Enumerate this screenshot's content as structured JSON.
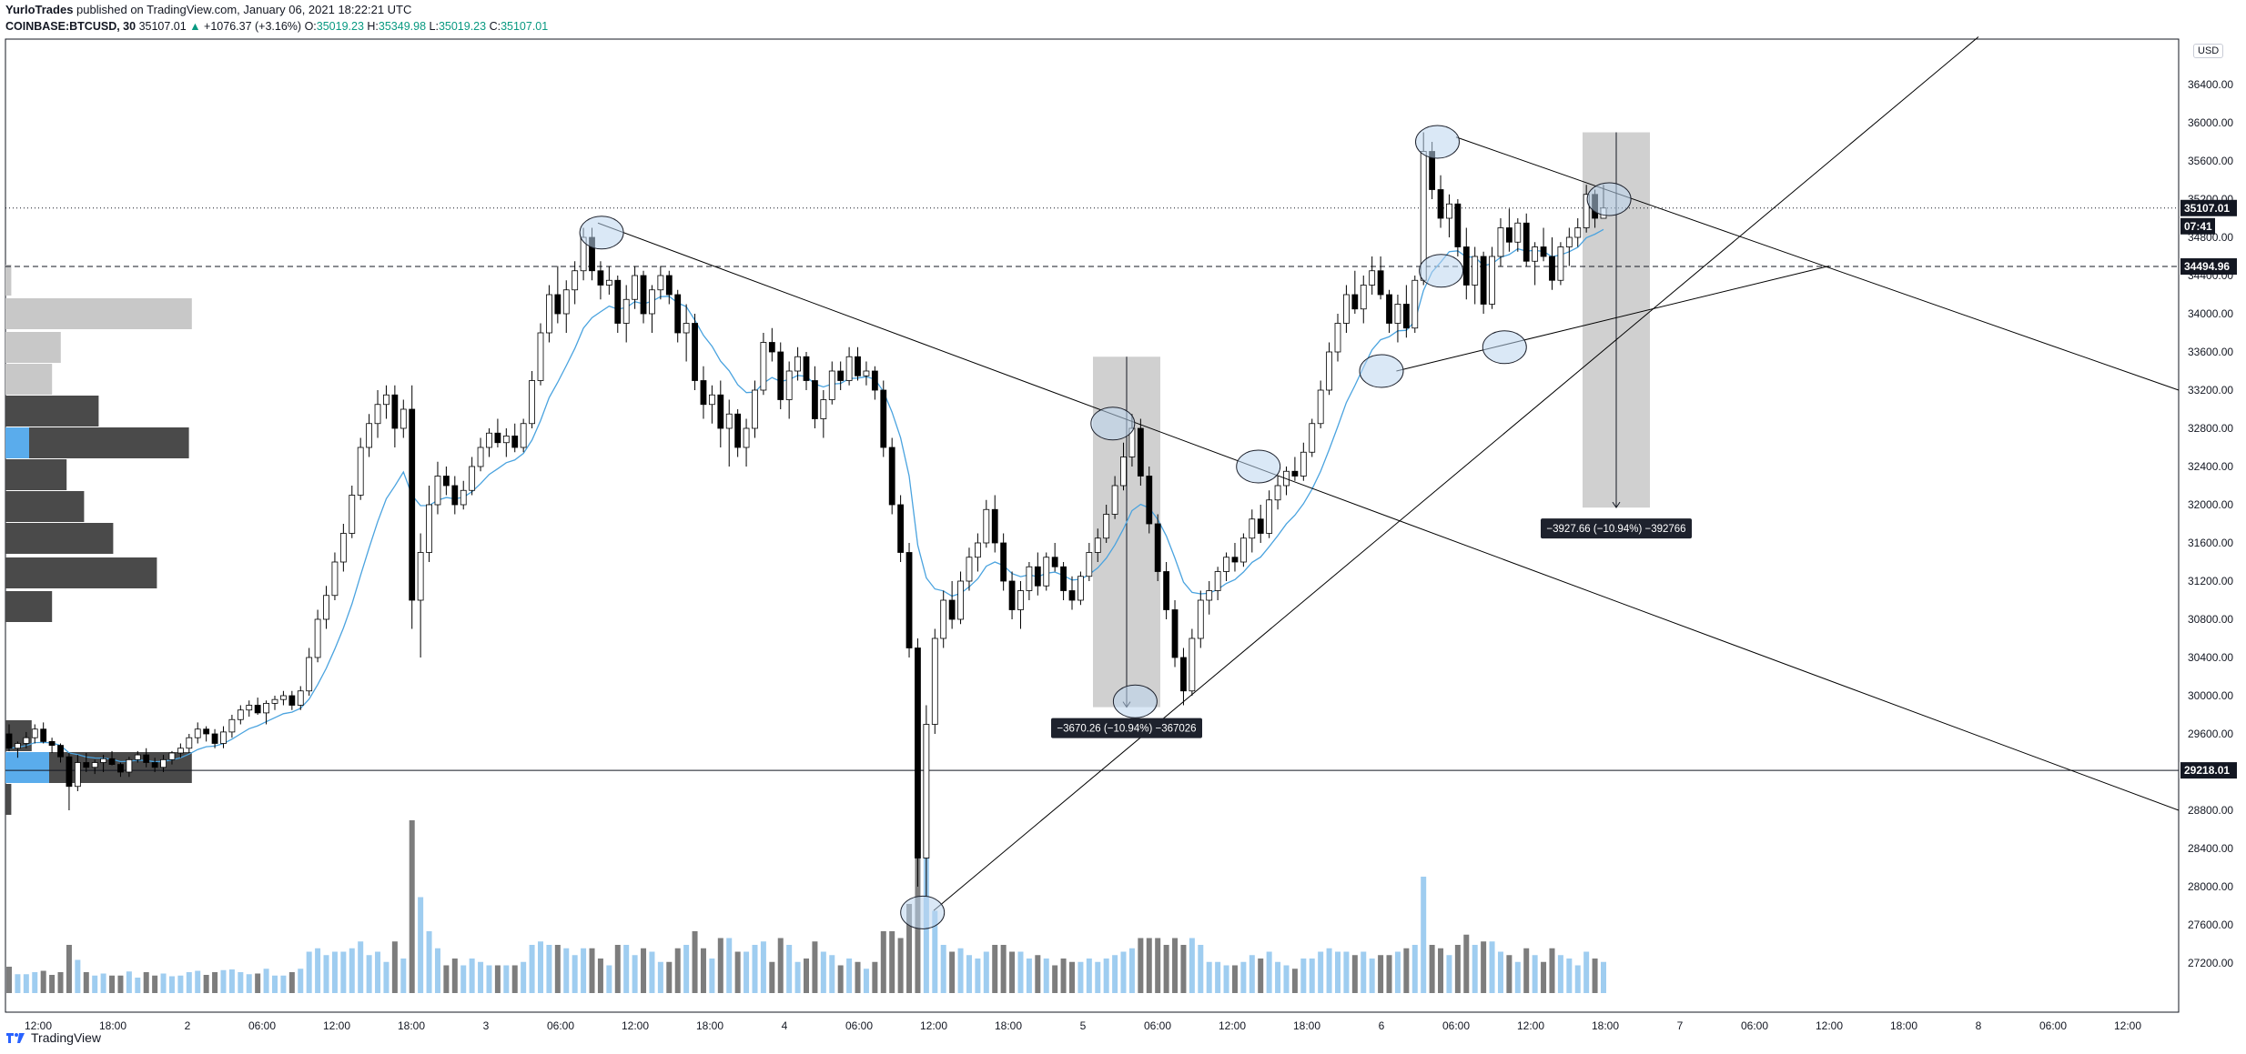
{
  "header": {
    "author": "YurloTrades",
    "published": "published on TradingView.com, January 06, 2021 18:22:21 UTC",
    "symbol": "COINBASE:BTCUSD, 30",
    "last": "35107.01",
    "change": "+1076.37 (+3.16%)",
    "open_label": "O:",
    "open": "35019.23",
    "high_label": "H:",
    "high": "35349.98",
    "low_label": "L:",
    "low": "35019.23",
    "close_label": "C:",
    "close": "35107.01"
  },
  "footer": {
    "brand": "TradingView"
  },
  "currency": "USD",
  "colors": {
    "up_candle": "#ffffff",
    "down_candle": "#000000",
    "ema": "#4aa3df",
    "volume_up": "#9fcdf0",
    "volume_down": "#7d7d7d",
    "vp_dark": "#4a4a4a",
    "vp_light": "#c8c8c8",
    "vp_poc": "#5aacec",
    "measure_box": "#c8c8c8",
    "trendline": "#000000"
  },
  "chart_data": {
    "type": "candlestick",
    "symbol": "COINBASE:BTCUSD",
    "interval": "30",
    "xaxis_ticks": [
      "12:00",
      "18:00",
      "2",
      "06:00",
      "12:00",
      "18:00",
      "3",
      "06:00",
      "12:00",
      "18:00",
      "4",
      "06:00",
      "12:00",
      "18:00",
      "5",
      "06:00",
      "12:00",
      "18:00",
      "6",
      "06:00",
      "12:00",
      "18:00",
      "7",
      "06:00",
      "12:00",
      "18:00",
      "8",
      "06:00",
      "12:00"
    ],
    "yaxis_ticks": [
      36400,
      36000,
      35600,
      35200,
      34800,
      34400,
      34000,
      33600,
      33200,
      32800,
      32400,
      32000,
      31600,
      31200,
      30800,
      30400,
      30000,
      29600,
      29200,
      28800,
      28400,
      28000,
      27600,
      27200
    ],
    "ylim": [
      26900,
      36800
    ],
    "price_labels": [
      {
        "value": "35107.01",
        "kind": "last"
      },
      {
        "value": "07:41",
        "kind": "countdown"
      },
      {
        "value": "34494.96",
        "kind": "level"
      },
      {
        "value": "29218.01",
        "kind": "level"
      }
    ],
    "horizontal_lines": [
      {
        "price": 35107.01,
        "style": "dotted"
      },
      {
        "price": 34494.96,
        "style": "dashed"
      },
      {
        "price": 29218.01,
        "style": "solid"
      }
    ],
    "measurements": [
      {
        "text": "−3670.26 (−10.94%) −367026",
        "top": 33550,
        "bottom": 29880
      },
      {
        "text": "−3927.66 (−10.94%) −392766",
        "top": 35900,
        "bottom": 31970
      }
    ],
    "trendlines": [
      {
        "from": [
          7.5,
          34950
        ],
        "to": [
          29.0,
          28800
        ]
      },
      {
        "from": [
          12.0,
          27750
        ],
        "to": [
          26.0,
          36900
        ]
      },
      {
        "from": [
          19.0,
          35850
        ],
        "to": [
          29.0,
          33200
        ]
      },
      {
        "from": [
          18.2,
          33400
        ],
        "to": [
          24.0,
          34500
        ]
      }
    ],
    "circles": [
      [
        7.55,
        34850
      ],
      [
        14.4,
        32850
      ],
      [
        16.35,
        32400
      ],
      [
        14.7,
        29940
      ],
      [
        11.85,
        27730
      ],
      [
        18.0,
        33400
      ],
      [
        18.8,
        34450
      ],
      [
        19.65,
        33650
      ],
      [
        18.75,
        35800
      ],
      [
        21.05,
        35200
      ]
    ],
    "candles": [
      [
        29600,
        29700,
        29420,
        29450
      ],
      [
        29450,
        29520,
        29350,
        29500
      ],
      [
        29500,
        29620,
        29450,
        29560
      ],
      [
        29560,
        29700,
        29500,
        29650
      ],
      [
        29650,
        29720,
        29500,
        29520
      ],
      [
        29520,
        29560,
        29400,
        29480
      ],
      [
        29480,
        29500,
        29300,
        29360
      ],
      [
        29360,
        29400,
        28800,
        29050
      ],
      [
        29050,
        29380,
        29000,
        29300
      ],
      [
        29300,
        29400,
        29200,
        29250
      ],
      [
        29250,
        29330,
        29180,
        29300
      ],
      [
        29300,
        29380,
        29200,
        29340
      ],
      [
        29340,
        29420,
        29270,
        29280
      ],
      [
        29280,
        29300,
        29150,
        29200
      ],
      [
        29200,
        29360,
        29150,
        29330
      ],
      [
        29330,
        29420,
        29300,
        29380
      ],
      [
        29380,
        29450,
        29250,
        29300
      ],
      [
        29300,
        29350,
        29200,
        29250
      ],
      [
        29250,
        29380,
        29200,
        29330
      ],
      [
        29330,
        29420,
        29280,
        29400
      ],
      [
        29400,
        29500,
        29350,
        29450
      ],
      [
        29450,
        29600,
        29400,
        29560
      ],
      [
        29560,
        29720,
        29500,
        29650
      ],
      [
        29650,
        29680,
        29520,
        29600
      ],
      [
        29600,
        29650,
        29450,
        29500
      ],
      [
        29500,
        29680,
        29450,
        29620
      ],
      [
        29620,
        29800,
        29560,
        29750
      ],
      [
        29750,
        29900,
        29700,
        29850
      ],
      [
        29850,
        29950,
        29780,
        29900
      ],
      [
        29900,
        29980,
        29800,
        29820
      ],
      [
        29820,
        29950,
        29700,
        29920
      ],
      [
        29920,
        30000,
        29850,
        29960
      ],
      [
        29960,
        30050,
        29900,
        30000
      ],
      [
        30000,
        30050,
        29850,
        29900
      ],
      [
        29900,
        30100,
        29850,
        30050
      ],
      [
        30050,
        30500,
        30000,
        30400
      ],
      [
        30400,
        30900,
        30350,
        30800
      ],
      [
        30800,
        31150,
        30700,
        31050
      ],
      [
        31050,
        31500,
        31000,
        31400
      ],
      [
        31400,
        31800,
        31300,
        31700
      ],
      [
        31700,
        32200,
        31650,
        32100
      ],
      [
        32100,
        32700,
        32050,
        32600
      ],
      [
        32600,
        32950,
        32500,
        32850
      ],
      [
        32850,
        33200,
        32700,
        33050
      ],
      [
        33050,
        33250,
        32900,
        33150
      ],
      [
        33150,
        33250,
        32600,
        32800
      ],
      [
        32800,
        33100,
        32700,
        33000
      ],
      [
        33000,
        33250,
        30700,
        31000
      ],
      [
        31000,
        31700,
        30400,
        31500
      ],
      [
        31500,
        32200,
        31400,
        32000
      ],
      [
        32000,
        32450,
        31900,
        32300
      ],
      [
        32300,
        32400,
        32100,
        32200
      ],
      [
        32200,
        32300,
        31900,
        32000
      ],
      [
        32000,
        32250,
        31950,
        32150
      ],
      [
        32150,
        32500,
        32100,
        32400
      ],
      [
        32400,
        32700,
        32350,
        32600
      ],
      [
        32600,
        32800,
        32500,
        32750
      ],
      [
        32750,
        32900,
        32600,
        32650
      ],
      [
        32650,
        32800,
        32500,
        32720
      ],
      [
        32720,
        32850,
        32550,
        32600
      ],
      [
        32600,
        32900,
        32550,
        32850
      ],
      [
        32850,
        33400,
        32800,
        33300
      ],
      [
        33300,
        33900,
        33250,
        33800
      ],
      [
        33800,
        34300,
        33700,
        34200
      ],
      [
        34200,
        34500,
        33900,
        34000
      ],
      [
        34000,
        34350,
        33800,
        34250
      ],
      [
        34250,
        34550,
        34100,
        34450
      ],
      [
        34450,
        34900,
        34350,
        34800
      ],
      [
        34800,
        34900,
        34350,
        34450
      ],
      [
        34450,
        34550,
        34150,
        34300
      ],
      [
        34300,
        34500,
        34200,
        34350
      ],
      [
        34350,
        34400,
        33800,
        33900
      ],
      [
        33900,
        34300,
        33700,
        34150
      ],
      [
        34150,
        34500,
        34050,
        34400
      ],
      [
        34400,
        34450,
        33900,
        34000
      ],
      [
        34000,
        34300,
        33800,
        34250
      ],
      [
        34250,
        34500,
        34150,
        34400
      ],
      [
        34400,
        34450,
        34100,
        34200
      ],
      [
        34200,
        34250,
        33700,
        33800
      ],
      [
        33800,
        34100,
        33500,
        33900
      ],
      [
        33900,
        34000,
        33200,
        33300
      ],
      [
        33300,
        33450,
        32900,
        33050
      ],
      [
        33050,
        33250,
        32850,
        33150
      ],
      [
        33150,
        33300,
        32600,
        32800
      ],
      [
        32800,
        33100,
        32400,
        32950
      ],
      [
        32950,
        33000,
        32500,
        32600
      ],
      [
        32600,
        32900,
        32400,
        32800
      ],
      [
        32800,
        33300,
        32700,
        33200
      ],
      [
        33200,
        33800,
        33150,
        33700
      ],
      [
        33700,
        33850,
        33500,
        33600
      ],
      [
        33600,
        33700,
        33000,
        33100
      ],
      [
        33100,
        33500,
        32900,
        33400
      ],
      [
        33400,
        33650,
        33300,
        33550
      ],
      [
        33550,
        33600,
        33200,
        33300
      ],
      [
        33300,
        33450,
        32800,
        32900
      ],
      [
        32900,
        33200,
        32700,
        33100
      ],
      [
        33100,
        33500,
        33050,
        33400
      ],
      [
        33400,
        33500,
        33200,
        33300
      ],
      [
        33300,
        33650,
        33250,
        33550
      ],
      [
        33550,
        33650,
        33300,
        33350
      ],
      [
        33350,
        33500,
        33250,
        33400
      ],
      [
        33400,
        33450,
        33100,
        33200
      ],
      [
        33200,
        33300,
        32500,
        32600
      ],
      [
        32600,
        32700,
        31900,
        32000
      ],
      [
        32000,
        32100,
        31400,
        31500
      ],
      [
        31500,
        31600,
        30400,
        30500
      ],
      [
        30500,
        30600,
        28000,
        28300
      ],
      [
        28300,
        29900,
        27900,
        29700
      ],
      [
        29700,
        30700,
        29600,
        30600
      ],
      [
        30600,
        31100,
        30500,
        31000
      ],
      [
        31000,
        31200,
        30700,
        30800
      ],
      [
        30800,
        31300,
        30750,
        31200
      ],
      [
        31200,
        31550,
        31100,
        31450
      ],
      [
        31450,
        31700,
        31300,
        31600
      ],
      [
        31600,
        32050,
        31550,
        31950
      ],
      [
        31950,
        32100,
        31500,
        31600
      ],
      [
        31600,
        31700,
        31100,
        31200
      ],
      [
        31200,
        31300,
        30800,
        30900
      ],
      [
        30900,
        31200,
        30700,
        31100
      ],
      [
        31100,
        31400,
        31000,
        31350
      ],
      [
        31350,
        31500,
        31050,
        31150
      ],
      [
        31150,
        31500,
        31100,
        31450
      ],
      [
        31450,
        31600,
        31300,
        31350
      ],
      [
        31350,
        31400,
        31000,
        31100
      ],
      [
        31100,
        31250,
        30900,
        31000
      ],
      [
        31000,
        31300,
        30950,
        31250
      ],
      [
        31250,
        31600,
        31200,
        31500
      ],
      [
        31500,
        31750,
        31400,
        31650
      ],
      [
        31650,
        32000,
        31600,
        31900
      ],
      [
        31900,
        32300,
        31850,
        32200
      ],
      [
        32200,
        32650,
        32150,
        32500
      ],
      [
        32500,
        32950,
        32400,
        32800
      ],
      [
        32800,
        32900,
        32200,
        32300
      ],
      [
        32300,
        32400,
        31700,
        31800
      ],
      [
        31800,
        31900,
        31200,
        31300
      ],
      [
        31300,
        31400,
        30800,
        30900
      ],
      [
        30900,
        31000,
        30300,
        30400
      ],
      [
        30400,
        30500,
        29900,
        30050
      ],
      [
        30050,
        30700,
        30000,
        30600
      ],
      [
        30600,
        31100,
        30500,
        31000
      ],
      [
        31000,
        31200,
        30850,
        31100
      ],
      [
        31100,
        31350,
        31000,
        31300
      ],
      [
        31300,
        31500,
        31200,
        31450
      ],
      [
        31450,
        31600,
        31300,
        31400
      ],
      [
        31400,
        31700,
        31350,
        31650
      ],
      [
        31650,
        31950,
        31500,
        31850
      ],
      [
        31850,
        32000,
        31600,
        31700
      ],
      [
        31700,
        32150,
        31650,
        32050
      ],
      [
        32050,
        32300,
        31950,
        32200
      ],
      [
        32200,
        32400,
        32100,
        32350
      ],
      [
        32350,
        32500,
        32250,
        32300
      ],
      [
        32300,
        32650,
        32250,
        32550
      ],
      [
        32550,
        32900,
        32500,
        32850
      ],
      [
        32850,
        33300,
        32800,
        33200
      ],
      [
        33200,
        33700,
        33150,
        33600
      ],
      [
        33600,
        34000,
        33500,
        33900
      ],
      [
        33900,
        34300,
        33800,
        34200
      ],
      [
        34200,
        34450,
        34000,
        34050
      ],
      [
        34050,
        34400,
        33900,
        34300
      ],
      [
        34300,
        34600,
        34200,
        34450
      ],
      [
        34450,
        34600,
        34150,
        34200
      ],
      [
        34200,
        34250,
        33800,
        33900
      ],
      [
        33900,
        34200,
        33700,
        34100
      ],
      [
        34100,
        34300,
        33750,
        33850
      ],
      [
        33850,
        34400,
        33800,
        34350
      ],
      [
        34350,
        35900,
        34300,
        35700
      ],
      [
        35700,
        35800,
        35200,
        35300
      ],
      [
        35300,
        35450,
        34900,
        35000
      ],
      [
        35000,
        35250,
        34800,
        35150
      ],
      [
        35150,
        35200,
        34600,
        34700
      ],
      [
        34700,
        34900,
        34150,
        34300
      ],
      [
        34300,
        34700,
        34100,
        34600
      ],
      [
        34600,
        34650,
        34000,
        34100
      ],
      [
        34100,
        34700,
        34050,
        34600
      ],
      [
        34600,
        35000,
        34500,
        34900
      ],
      [
        34900,
        35100,
        34650,
        34750
      ],
      [
        34750,
        35000,
        34650,
        34950
      ],
      [
        34950,
        35050,
        34500,
        34550
      ],
      [
        34550,
        34750,
        34300,
        34700
      ],
      [
        34700,
        34900,
        34550,
        34600
      ],
      [
        34600,
        34800,
        34250,
        34350
      ],
      [
        34350,
        34750,
        34300,
        34700
      ],
      [
        34700,
        34900,
        34500,
        34800
      ],
      [
        34800,
        35000,
        34700,
        34900
      ],
      [
        34900,
        35350,
        34850,
        35250
      ],
      [
        35250,
        35300,
        34900,
        35000
      ],
      [
        35000,
        35350,
        35000,
        35107
      ]
    ],
    "ema": "EMA overlay (blue) following price",
    "volume": "bars shown under price",
    "volume_profile": "horizontal histogram on the left edge"
  }
}
